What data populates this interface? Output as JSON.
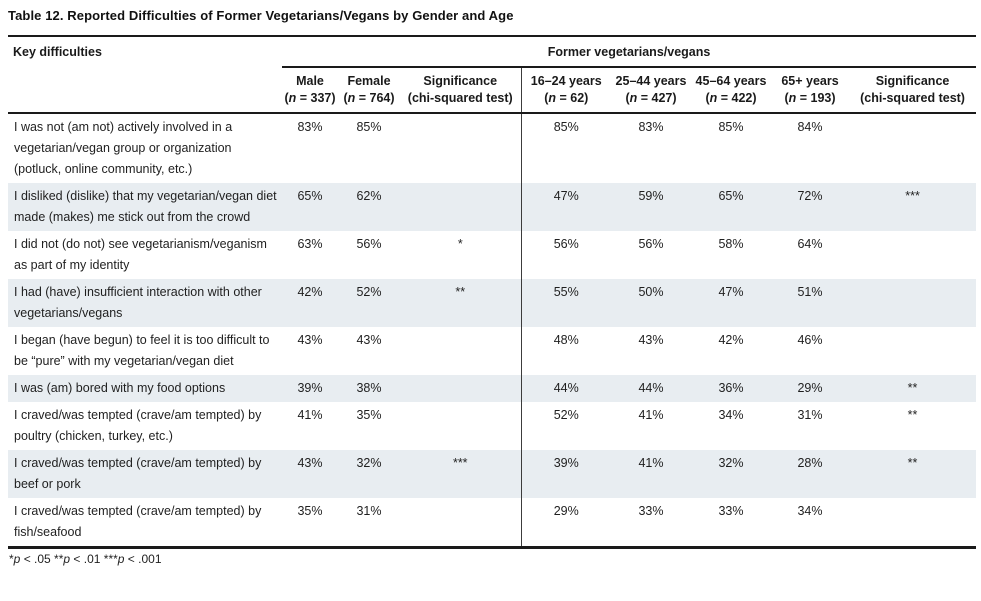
{
  "title": "Table 12. Reported Difficulties of Former Vegetarians/Vegans by Gender and Age",
  "table": {
    "key_column_header": "Key difficulties",
    "group_header": "Former vegetarians/vegans",
    "gender_columns": [
      {
        "label": "Male",
        "sub": "(n = 337)"
      },
      {
        "label": "Female",
        "sub": "(n = 764)"
      },
      {
        "label": "Significance",
        "sub": "(chi-squared test)"
      }
    ],
    "age_columns": [
      {
        "label": "16–24 years",
        "sub": "(n = 62)"
      },
      {
        "label": "25–44 years",
        "sub": "(n = 427)"
      },
      {
        "label": "45–64 years",
        "sub": "(n = 422)"
      },
      {
        "label": "65+ years",
        "sub": "(n = 193)"
      },
      {
        "label": "Significance",
        "sub": "(chi-squared test)"
      }
    ],
    "rows": [
      {
        "difficulty": "I was not (am not) actively involved in a vegetarian/vegan group or organization (potluck, online community, etc.)",
        "male": "83%",
        "female": "85%",
        "sig_gender": "",
        "age_16_24": "85%",
        "age_25_44": "83%",
        "age_45_64": "85%",
        "age_65_plus": "84%",
        "sig_age": ""
      },
      {
        "difficulty": "I disliked (dislike) that my vegetarian/vegan diet made (makes) me stick out from the crowd",
        "male": "65%",
        "female": "62%",
        "sig_gender": "",
        "age_16_24": "47%",
        "age_25_44": "59%",
        "age_45_64": "65%",
        "age_65_plus": "72%",
        "sig_age": "***"
      },
      {
        "difficulty": "I did not (do not) see vegetarianism/veganism as part of my identity",
        "male": "63%",
        "female": "56%",
        "sig_gender": "*",
        "age_16_24": "56%",
        "age_25_44": "56%",
        "age_45_64": "58%",
        "age_65_plus": "64%",
        "sig_age": ""
      },
      {
        "difficulty": "I had (have) insufficient interaction with other vegetarians/vegans",
        "male": "42%",
        "female": "52%",
        "sig_gender": "**",
        "age_16_24": "55%",
        "age_25_44": "50%",
        "age_45_64": "47%",
        "age_65_plus": "51%",
        "sig_age": ""
      },
      {
        "difficulty": "I began (have begun) to feel it is too difficult to be “pure” with my vegetarian/vegan diet",
        "male": "43%",
        "female": "43%",
        "sig_gender": "",
        "age_16_24": "48%",
        "age_25_44": "43%",
        "age_45_64": "42%",
        "age_65_plus": "46%",
        "sig_age": ""
      },
      {
        "difficulty": "I was (am) bored with my food options",
        "male": "39%",
        "female": "38%",
        "sig_gender": "",
        "age_16_24": "44%",
        "age_25_44": "44%",
        "age_45_64": "36%",
        "age_65_plus": "29%",
        "sig_age": "**"
      },
      {
        "difficulty": "I craved/was tempted (crave/am tempted) by poultry (chicken, turkey, etc.)",
        "male": "41%",
        "female": "35%",
        "sig_gender": "",
        "age_16_24": "52%",
        "age_25_44": "41%",
        "age_45_64": "34%",
        "age_65_plus": "31%",
        "sig_age": "**"
      },
      {
        "difficulty": "I craved/was tempted (crave/am tempted) by beef or pork",
        "male": "43%",
        "female": "32%",
        "sig_gender": "***",
        "age_16_24": "39%",
        "age_25_44": "41%",
        "age_45_64": "32%",
        "age_65_plus": "28%",
        "sig_age": "**"
      },
      {
        "difficulty": "I craved/was tempted (crave/am tempted) by fish/seafood",
        "male": "35%",
        "female": "31%",
        "sig_gender": "",
        "age_16_24": "29%",
        "age_25_44": "33%",
        "age_45_64": "33%",
        "age_65_plus": "34%",
        "sig_age": ""
      }
    ]
  },
  "footnote": "*p < .05 **p < .01 ***p < .001",
  "colors": {
    "row_shade": "#e8edf1",
    "rule": "#1a1a1a",
    "text": "#1f1f1f"
  },
  "chart_data": {
    "type": "table",
    "title": "Table 12. Reported Difficulties of Former Vegetarians/Vegans by Gender and Age",
    "group_header": "Former vegetarians/vegans",
    "columns": [
      "Key difficulties",
      "Male (n = 337)",
      "Female (n = 764)",
      "Significance (chi-squared test)",
      "16–24 years (n = 62)",
      "25–44 years (n = 427)",
      "45–64 years (n = 422)",
      "65+ years (n = 193)",
      "Significance (chi-squared test)"
    ],
    "rows": [
      [
        "I was not (am not) actively involved in a vegetarian/vegan group or organization (potluck, online community, etc.)",
        "83%",
        "85%",
        "",
        "85%",
        "83%",
        "85%",
        "84%",
        ""
      ],
      [
        "I disliked (dislike) that my vegetarian/vegan diet made (makes) me stick out from the crowd",
        "65%",
        "62%",
        "",
        "47%",
        "59%",
        "65%",
        "72%",
        "***"
      ],
      [
        "I did not (do not) see vegetarianism/veganism as part of my identity",
        "63%",
        "56%",
        "*",
        "56%",
        "56%",
        "58%",
        "64%",
        ""
      ],
      [
        "I had (have) insufficient interaction with other vegetarians/vegans",
        "42%",
        "52%",
        "**",
        "55%",
        "50%",
        "47%",
        "51%",
        ""
      ],
      [
        "I began (have begun) to feel it is too difficult to be “pure” with my vegetarian/vegan diet",
        "43%",
        "43%",
        "",
        "48%",
        "43%",
        "42%",
        "46%",
        ""
      ],
      [
        "I was (am) bored with my food options",
        "39%",
        "38%",
        "",
        "44%",
        "44%",
        "36%",
        "29%",
        "**"
      ],
      [
        "I craved/was tempted (crave/am tempted) by poultry (chicken, turkey, etc.)",
        "41%",
        "35%",
        "",
        "52%",
        "41%",
        "34%",
        "31%",
        "**"
      ],
      [
        "I craved/was tempted (crave/am tempted) by beef or pork",
        "43%",
        "32%",
        "***",
        "39%",
        "41%",
        "32%",
        "28%",
        "**"
      ],
      [
        "I craved/was tempted (crave/am tempted) by fish/seafood",
        "35%",
        "31%",
        "",
        "29%",
        "33%",
        "33%",
        "34%",
        ""
      ]
    ],
    "footnote": "*p < .05 **p < .01 ***p < .001"
  }
}
